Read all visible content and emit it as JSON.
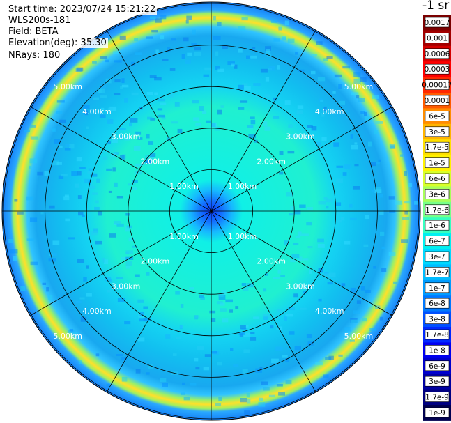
{
  "info": {
    "start_time": "Start time: 2023/07/24 15:21:22",
    "instrument": "WLS200s-181",
    "field": "Field: BETA",
    "elevation": "Elevation(deg): 35.30",
    "nrays": "NRays: 180"
  },
  "colorbar": {
    "title": "-1 sr",
    "labels": [
      "0.0017",
      "0.001",
      "0.0006",
      "0.0003",
      "0.00017",
      "0.0001",
      "6e-5",
      "3e-5",
      "1.7e-5",
      "1e-5",
      "6e-6",
      "3e-6",
      "1.7e-6",
      "1e-6",
      "6e-7",
      "3e-7",
      "1.7e-7",
      "1e-7",
      "6e-8",
      "3e-8",
      "1.7e-8",
      "1e-8",
      "6e-9",
      "3e-9",
      "1.7e-9",
      "1e-9"
    ],
    "colors": [
      "#7a0000",
      "#a30000",
      "#d40000",
      "#ff0000",
      "#ff2800",
      "#ff5a00",
      "#ff8c00",
      "#ffb400",
      "#ffe000",
      "#fff200",
      "#d8ff2a",
      "#a8ff5a",
      "#78ff88",
      "#36ffc0",
      "#00f0f0",
      "#00d8ff",
      "#00bcff",
      "#009cff",
      "#0078ff",
      "#0050ff",
      "#0028ff",
      "#0000f0",
      "#0000cc",
      "#0000a0",
      "#000080",
      "#000050"
    ]
  },
  "chart_data": {
    "type": "heatmap",
    "projection": "polar (PPI scan)",
    "field": "BETA",
    "units": "sr-1 (log color scale)",
    "range_rings_km": [
      1,
      2,
      3,
      4,
      5
    ],
    "ring_labels": [
      "1.00km",
      "2.00km",
      "3.00km",
      "4.00km",
      "5.00km"
    ],
    "max_range_km": 5.2,
    "azimuth_spokes_deg": [
      0,
      30,
      60,
      90,
      120,
      150,
      180,
      210,
      240,
      270,
      300,
      330
    ],
    "nrays": 180,
    "elevation_deg": 35.3,
    "color_scale_min": "1e-9",
    "color_scale_max": "0.0017",
    "profile_by_range_km": [
      {
        "range_km": 0.0,
        "beta": "3e-8"
      },
      {
        "range_km": 0.6,
        "beta": "1e-7"
      },
      {
        "range_km": 1.0,
        "beta": "6e-7"
      },
      {
        "range_km": 2.0,
        "beta": "1e-6"
      },
      {
        "range_km": 3.0,
        "beta": "6e-7"
      },
      {
        "range_km": 4.0,
        "beta": "1.7e-7"
      },
      {
        "range_km": 4.6,
        "beta": "1e-7"
      },
      {
        "range_km": 4.85,
        "beta": "1e-5"
      },
      {
        "range_km": 5.0,
        "beta": "1e-7"
      }
    ]
  }
}
